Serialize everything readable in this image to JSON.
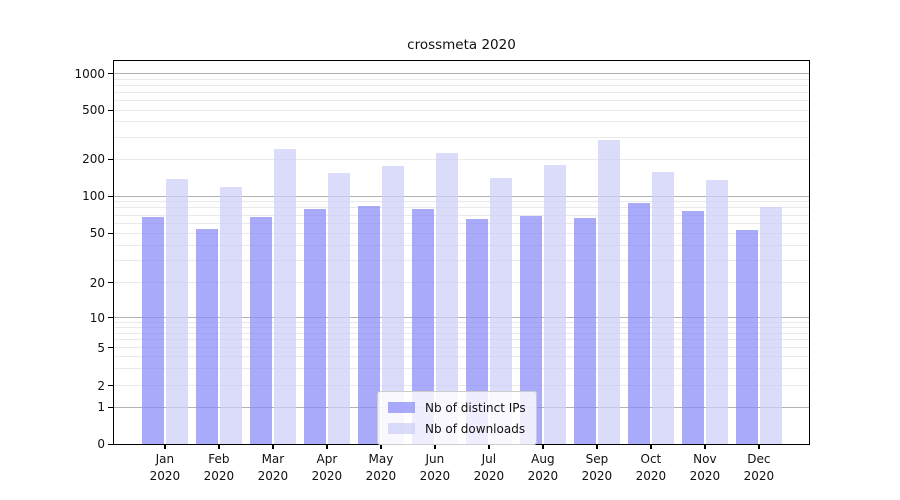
{
  "title": "crossmeta 2020",
  "chart_data": {
    "type": "bar",
    "title": "crossmeta 2020",
    "categories": [
      "Jan",
      "Feb",
      "Mar",
      "Apr",
      "May",
      "Jun",
      "Jul",
      "Aug",
      "Sep",
      "Oct",
      "Nov",
      "Dec"
    ],
    "year": "2020",
    "series": [
      {
        "name": "Nb of distinct IPs",
        "color": "#8989f8",
        "values": [
          67,
          54,
          67,
          78,
          83,
          79,
          65,
          69,
          66,
          88,
          75,
          53
        ]
      },
      {
        "name": "Nb of downloads",
        "color": "#cdcdf8",
        "values": [
          137,
          118,
          240,
          153,
          175,
          225,
          139,
          180,
          285,
          157,
          134,
          82
        ]
      }
    ],
    "xlabel": "",
    "ylabel": "",
    "yscale": "symlog",
    "yticks": [
      0,
      1,
      2,
      5,
      10,
      20,
      50,
      100,
      200,
      500,
      1000
    ],
    "grid": true,
    "legend_position": "lower center",
    "colors": {
      "bar_ips": "#8989f8",
      "bar_downloads": "#cdcdf8",
      "grid_major": "#b3b3b3",
      "grid_minor": "#eaeaea",
      "background": "#ffffff"
    }
  }
}
